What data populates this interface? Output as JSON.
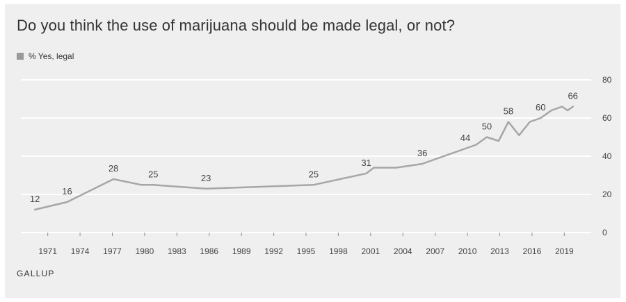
{
  "colors": {
    "background": "#efefef",
    "line": "#a6a6a6",
    "grid": "#ffffff",
    "text": "#333333"
  },
  "chart_data": {
    "type": "line",
    "title": "Do you think the use of marijuana should be made legal, or not?",
    "source": "GALLUP",
    "legend": {
      "position": "top-left",
      "entries": [
        "% Yes, legal"
      ]
    },
    "ylim": [
      0,
      80
    ],
    "y_ticks": [
      0,
      20,
      40,
      60,
      80
    ],
    "xlim": [
      1968.5,
      2021.5
    ],
    "x_ticks": [
      1971,
      1974,
      1977,
      1980,
      1983,
      1986,
      1989,
      1992,
      1995,
      1998,
      2001,
      2004,
      2007,
      2010,
      2013,
      2016,
      2019
    ],
    "grid": true,
    "y_axis_side": "right",
    "series": [
      {
        "name": "% Yes, legal",
        "x": [
          1969.8,
          1972.8,
          1977.1,
          1979.7,
          1980.8,
          1985.7,
          1995.7,
          2000.6,
          2001.3,
          2003.4,
          2005.8,
          2009.8,
          2010.8,
          2011.8,
          2012.9,
          2013.8,
          2014.8,
          2015.8,
          2016.8,
          2017.8,
          2018.8,
          2019.3,
          2019.8
        ],
        "values": [
          12,
          16,
          28,
          25,
          25,
          23,
          25,
          31,
          34,
          34,
          36,
          44,
          46,
          50,
          48,
          58,
          51,
          58,
          60,
          64,
          66,
          64,
          66
        ]
      }
    ],
    "data_labels": [
      {
        "x": 1969.8,
        "y": 12,
        "text": "12"
      },
      {
        "x": 1972.8,
        "y": 16,
        "text": "16"
      },
      {
        "x": 1977.1,
        "y": 28,
        "text": "28"
      },
      {
        "x": 1980.8,
        "y": 25,
        "text": "25"
      },
      {
        "x": 1985.7,
        "y": 23,
        "text": "23"
      },
      {
        "x": 1995.7,
        "y": 25,
        "text": "25"
      },
      {
        "x": 2000.6,
        "y": 31,
        "text": "31"
      },
      {
        "x": 2005.8,
        "y": 36,
        "text": "36"
      },
      {
        "x": 2009.8,
        "y": 44,
        "text": "44"
      },
      {
        "x": 2011.8,
        "y": 50,
        "text": "50"
      },
      {
        "x": 2013.8,
        "y": 58,
        "text": "58"
      },
      {
        "x": 2016.8,
        "y": 60,
        "text": "60"
      },
      {
        "x": 2019.8,
        "y": 66,
        "text": "66"
      }
    ]
  }
}
